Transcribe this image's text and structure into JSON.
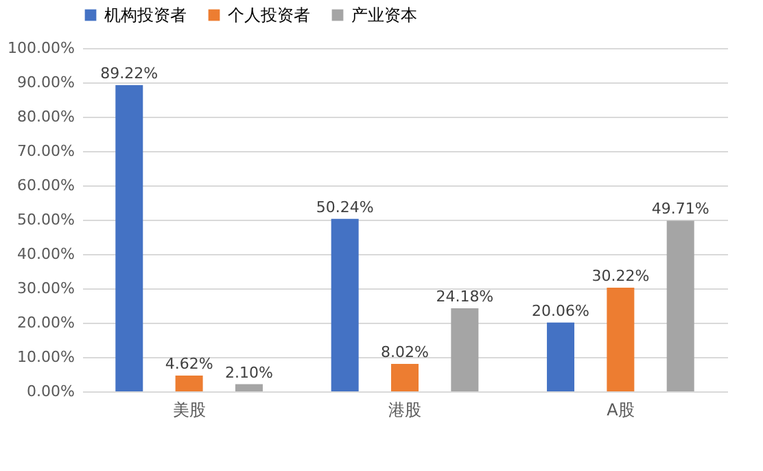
{
  "chart_data": {
    "type": "bar",
    "categories": [
      "美股",
      "港股",
      "A股"
    ],
    "series": [
      {
        "name": "机构投资者",
        "color": "#4472c4",
        "values": [
          89.22,
          50.24,
          20.06
        ],
        "value_labels": [
          "89.22%",
          "50.24%",
          "20.06%"
        ]
      },
      {
        "name": "个人投资者",
        "color": "#ed7d31",
        "values": [
          4.62,
          8.02,
          30.22
        ],
        "value_labels": [
          "4.62%",
          "8.02%",
          "30.22%"
        ]
      },
      {
        "name": "产业资本",
        "color": "#a5a5a5",
        "values": [
          2.1,
          24.18,
          49.71
        ],
        "value_labels": [
          "2.10%",
          "24.18%",
          "49.71%"
        ]
      }
    ],
    "ylim": [
      0,
      100
    ],
    "yticks": [
      {
        "value": 0,
        "label": "0.00%"
      },
      {
        "value": 10,
        "label": "10.00%"
      },
      {
        "value": 20,
        "label": "20.00%"
      },
      {
        "value": 30,
        "label": "30.00%"
      },
      {
        "value": 40,
        "label": "40.00%"
      },
      {
        "value": 50,
        "label": "50.00%"
      },
      {
        "value": 60,
        "label": "60.00%"
      },
      {
        "value": 70,
        "label": "70.00%"
      },
      {
        "value": 80,
        "label": "80.00%"
      },
      {
        "value": 90,
        "label": "90.00%"
      },
      {
        "value": 100,
        "label": "100.00%"
      }
    ],
    "grid": "y",
    "legend": "top"
  }
}
